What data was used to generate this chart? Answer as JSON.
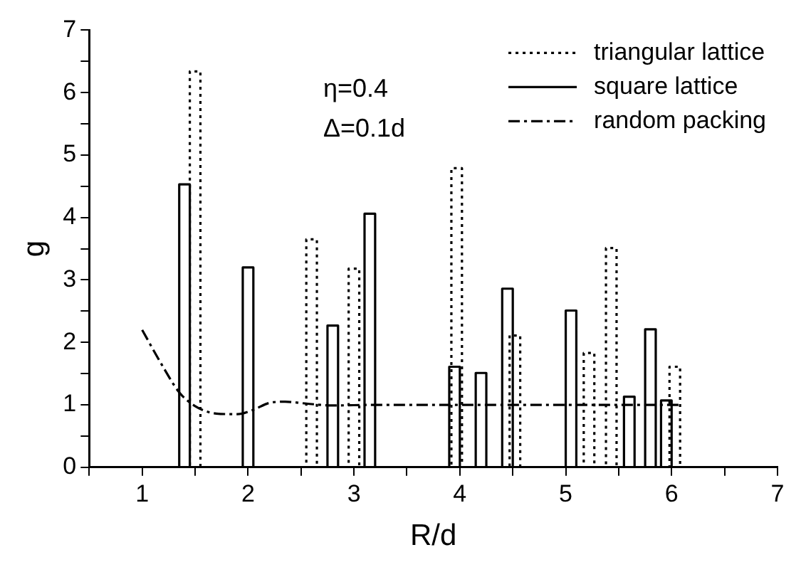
{
  "chart_data": {
    "type": "line",
    "xlabel": "R/d",
    "ylabel": "g",
    "xlim": [
      0.5,
      7
    ],
    "xticks": [
      {
        "value": 0.5,
        "label": null
      },
      1,
      {
        "value": 1.5,
        "label": null
      },
      2,
      {
        "value": 2.5,
        "label": null
      },
      3,
      {
        "value": 3.5,
        "label": null
      },
      4,
      {
        "value": 4.5,
        "label": null
      },
      5,
      {
        "value": 5.5,
        "label": null
      },
      6,
      {
        "value": 6.5,
        "label": null
      },
      7
    ],
    "ylim": [
      0,
      7
    ],
    "yticks": [
      0,
      {
        "value": 0.5,
        "label": null
      },
      1,
      {
        "value": 1.5,
        "label": null
      },
      2,
      {
        "value": 2.5,
        "label": null
      },
      3,
      {
        "value": 3.5,
        "label": null
      },
      4,
      {
        "value": 4.5,
        "label": null
      },
      5,
      {
        "value": 5.5,
        "label": null
      },
      6,
      {
        "value": 6.5,
        "label": null
      },
      7
    ],
    "grid": false,
    "legend": "top right",
    "marker": "none",
    "annotations": [
      "η=0.4",
      "Δ=0.1d"
    ],
    "series": [
      {
        "name": "triangular lattice",
        "type": "step",
        "line_style": "dotted",
        "color": "#000000",
        "x": [
          1,
          1.45,
          1.55,
          2.55,
          2.65,
          2.95,
          3.05,
          3.92,
          4.02,
          4.47,
          4.57,
          5.17,
          5.27,
          5.38,
          5.48,
          5.98,
          6.08
        ],
        "values": [
          0,
          6.34,
          0,
          3.65,
          0,
          3.18,
          0,
          4.79,
          0,
          2.11,
          0,
          1.83,
          0,
          3.51,
          0,
          1.61,
          0
        ]
      },
      {
        "name": "square lattice",
        "type": "step",
        "line_style": "solid",
        "color": "#000000",
        "x": [
          1,
          1.35,
          1.45,
          1.95,
          2.05,
          2.75,
          2.85,
          3.1,
          3.2,
          3.9,
          4.0,
          4.15,
          4.25,
          4.4,
          4.5,
          5.0,
          5.1,
          5.55,
          5.65,
          5.75,
          5.85,
          5.9,
          6.0
        ],
        "values": [
          0,
          4.53,
          0,
          3.2,
          0,
          2.27,
          0,
          4.06,
          0,
          1.61,
          0,
          1.51,
          0,
          2.86,
          0,
          2.51,
          0,
          1.13,
          0,
          2.21,
          0,
          1.07,
          0
        ]
      },
      {
        "name": "random packing",
        "type": "line",
        "line_style": "dashdot",
        "color": "#000000",
        "x": [
          1.0,
          1.2,
          1.35,
          1.5,
          1.7,
          1.9,
          2.05,
          2.2,
          2.35,
          2.55,
          2.8,
          3.2,
          4.0,
          5.0,
          6.1
        ],
        "values": [
          2.2,
          1.6,
          1.2,
          0.98,
          0.86,
          0.85,
          0.92,
          1.03,
          1.05,
          1.02,
          0.99,
          1.0,
          1.0,
          1.0,
          1.0
        ]
      }
    ]
  }
}
